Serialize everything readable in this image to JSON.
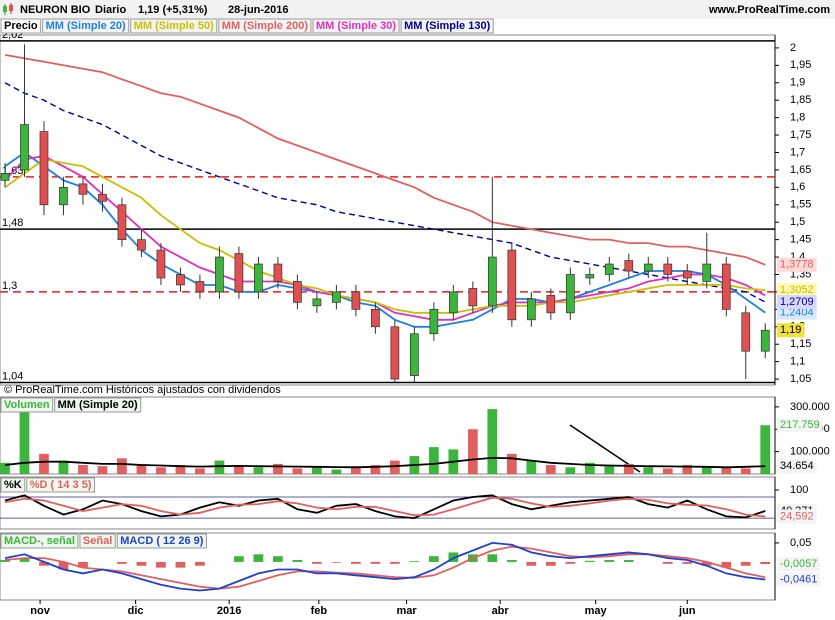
{
  "header": {
    "symbol": "NEURON BIO",
    "period": "Diario",
    "quote": "1,19 (+5,31%)",
    "date": "28-jun-2016",
    "site": "www.ProRealTime.com"
  },
  "footer_note": "© ProRealTime.com Históricos ajustados con dividendos",
  "chart_data": [
    {
      "type": "candlestick",
      "name": "Precio",
      "up_color": "#3cb53c",
      "down_color": "#e05050",
      "x": [
        0,
        1,
        2,
        3,
        4,
        5,
        6,
        7,
        8,
        9,
        10,
        11,
        12,
        13,
        14,
        15,
        16,
        17,
        18,
        19,
        20,
        21,
        22,
        23,
        24,
        25,
        26,
        27,
        28,
        29,
        30,
        31,
        32,
        33,
        34,
        35,
        36,
        37,
        38,
        39
      ],
      "xlim": [
        -0.256,
        39.5
      ],
      "open": [
        1.62,
        1.65,
        1.76,
        1.55,
        1.61,
        1.58,
        1.55,
        1.45,
        1.42,
        1.35,
        1.33,
        1.3,
        1.41,
        1.3,
        1.38,
        1.33,
        1.26,
        1.27,
        1.3,
        1.25,
        1.2,
        1.06,
        1.18,
        1.24,
        1.31,
        1.26,
        1.42,
        1.22,
        1.29,
        1.24,
        1.34,
        1.35,
        1.39,
        1.36,
        1.38,
        1.36,
        1.33,
        1.38,
        1.24,
        1.13
      ],
      "high": [
        1.67,
        2.01,
        1.79,
        1.63,
        1.63,
        1.61,
        1.57,
        1.48,
        1.44,
        1.37,
        1.35,
        1.43,
        1.43,
        1.4,
        1.4,
        1.35,
        1.3,
        1.32,
        1.32,
        1.27,
        1.22,
        1.2,
        1.27,
        1.32,
        1.33,
        1.63,
        1.44,
        1.3,
        1.31,
        1.37,
        1.37,
        1.4,
        1.41,
        1.4,
        1.4,
        1.38,
        1.47,
        1.4,
        1.26,
        1.21
      ],
      "low": [
        1.6,
        1.63,
        1.52,
        1.52,
        1.55,
        1.53,
        1.43,
        1.4,
        1.32,
        1.3,
        1.28,
        1.28,
        1.28,
        1.28,
        1.31,
        1.25,
        1.24,
        1.25,
        1.23,
        1.18,
        1.04,
        1.04,
        1.16,
        1.22,
        1.24,
        1.24,
        1.2,
        1.2,
        1.22,
        1.22,
        1.32,
        1.33,
        1.34,
        1.34,
        1.33,
        1.32,
        1.31,
        1.23,
        1.05,
        1.11
      ],
      "close": [
        1.64,
        1.78,
        1.55,
        1.6,
        1.58,
        1.56,
        1.45,
        1.42,
        1.34,
        1.32,
        1.3,
        1.4,
        1.3,
        1.38,
        1.33,
        1.27,
        1.28,
        1.3,
        1.25,
        1.2,
        1.05,
        1.18,
        1.25,
        1.3,
        1.26,
        1.4,
        1.22,
        1.28,
        1.24,
        1.35,
        1.35,
        1.38,
        1.36,
        1.38,
        1.35,
        1.34,
        1.38,
        1.25,
        1.13,
        1.19
      ],
      "close_label": "1,19",
      "close_label_color": "#f0e040",
      "series": [
        {
          "name": "MM (Simple 20)",
          "color": "#1e7fe0",
          "values": [
            1.66,
            1.7,
            1.66,
            1.62,
            1.6,
            1.55,
            1.48,
            1.42,
            1.38,
            1.35,
            1.32,
            1.32,
            1.3,
            1.3,
            1.32,
            1.31,
            1.3,
            1.29,
            1.27,
            1.26,
            1.22,
            1.2,
            1.2,
            1.21,
            1.22,
            1.25,
            1.28,
            1.28,
            1.27,
            1.28,
            1.3,
            1.32,
            1.34,
            1.36,
            1.36,
            1.36,
            1.35,
            1.32,
            1.28,
            1.2404
          ],
          "last_label": "1,2404"
        },
        {
          "name": "MM (Simple 50)",
          "color": "#c8c000",
          "values": [
            1.6,
            1.64,
            1.68,
            1.67,
            1.66,
            1.63,
            1.6,
            1.57,
            1.52,
            1.48,
            1.44,
            1.42,
            1.39,
            1.36,
            1.34,
            1.32,
            1.31,
            1.29,
            1.28,
            1.27,
            1.25,
            1.24,
            1.24,
            1.24,
            1.25,
            1.26,
            1.26,
            1.26,
            1.27,
            1.27,
            1.28,
            1.29,
            1.3,
            1.31,
            1.32,
            1.32,
            1.32,
            1.32,
            1.31,
            1.3052
          ],
          "last_label": "1,3052"
        },
        {
          "name": "MM (Simple 200)",
          "color": "#e06060",
          "values": [
            1.98,
            1.97,
            1.96,
            1.95,
            1.94,
            1.93,
            1.91,
            1.89,
            1.87,
            1.86,
            1.84,
            1.82,
            1.8,
            1.77,
            1.74,
            1.72,
            1.7,
            1.68,
            1.66,
            1.64,
            1.62,
            1.6,
            1.57,
            1.55,
            1.53,
            1.5,
            1.49,
            1.48,
            1.47,
            1.46,
            1.45,
            1.45,
            1.44,
            1.44,
            1.43,
            1.43,
            1.42,
            1.41,
            1.4,
            1.3778
          ],
          "last_label": "1,3778"
        },
        {
          "name": "MM (Simple 30)",
          "color": "#e030c0",
          "values": [
            1.62,
            1.68,
            1.69,
            1.66,
            1.63,
            1.58,
            1.53,
            1.48,
            1.43,
            1.4,
            1.37,
            1.35,
            1.33,
            1.33,
            1.33,
            1.32,
            1.3,
            1.29,
            1.28,
            1.27,
            1.24,
            1.23,
            1.22,
            1.22,
            1.24,
            1.26,
            1.27,
            1.27,
            1.27,
            1.28,
            1.29,
            1.3,
            1.31,
            1.33,
            1.34,
            1.35,
            1.35,
            1.34,
            1.32,
            1.29
          ]
        },
        {
          "name": "MM (Simple 130)",
          "color": "#000090",
          "dashed": true,
          "values": [
            1.9,
            1.87,
            1.85,
            1.82,
            1.8,
            1.78,
            1.75,
            1.72,
            1.69,
            1.67,
            1.65,
            1.63,
            1.61,
            1.59,
            1.57,
            1.56,
            1.55,
            1.53,
            1.52,
            1.51,
            1.5,
            1.49,
            1.48,
            1.47,
            1.46,
            1.45,
            1.44,
            1.42,
            1.4,
            1.39,
            1.38,
            1.37,
            1.36,
            1.35,
            1.34,
            1.33,
            1.32,
            1.31,
            1.3,
            1.2709
          ],
          "last_label": "1,2709"
        }
      ],
      "levels": [
        {
          "value": 2.02,
          "label": "2,02",
          "color": "#000000"
        },
        {
          "value": 1.63,
          "label": "1,63",
          "color": "#e02020",
          "dashed": true
        },
        {
          "value": 1.48,
          "label": "1,48",
          "color": "#000000"
        },
        {
          "value": 1.3,
          "label": "1,3",
          "color": "#e02020",
          "dashed": true
        },
        {
          "value": 1.04,
          "label": "1,04",
          "color": "#000000"
        }
      ],
      "ylim": [
        1.033,
        2.037
      ],
      "yticks": [
        2,
        {
          "value": 1.95,
          "label": "1,95"
        },
        {
          "value": 1.9,
          "label": "1,9"
        },
        {
          "value": 1.85,
          "label": "1,85"
        },
        {
          "value": 1.8,
          "label": "1,8"
        },
        {
          "value": 1.75,
          "label": "1,75"
        },
        {
          "value": 1.7,
          "label": "1,7"
        },
        {
          "value": 1.65,
          "label": "1,65"
        },
        {
          "value": 1.6,
          "label": "1,6"
        },
        {
          "value": 1.55,
          "label": "1,55"
        },
        {
          "value": 1.5,
          "label": "1,5"
        },
        {
          "value": 1.45,
          "label": "1,45"
        },
        {
          "value": 1.4,
          "label": "1,4"
        },
        {
          "value": 1.35,
          "label": "1,35"
        },
        {
          "value": 1.3,
          "label": "1,3"
        },
        {
          "value": 1.25,
          "label": "1,25"
        },
        {
          "value": 1.2,
          "label": "1,2"
        },
        {
          "value": 1.15,
          "label": "1,15"
        },
        {
          "value": 1.1,
          "label": "1,1"
        },
        {
          "value": 1.05,
          "label": "1,05"
        }
      ]
    },
    {
      "type": "bar",
      "xlim": [
        -0.256,
        39.5
      ],
      "ylim": [
        0,
        344000
      ],
      "yticks": [
        {
          "value": 300000,
          "label": "300.000"
        },
        {
          "value": 200000,
          "label": "200.000"
        },
        {
          "value": 100000,
          "label": "100.000"
        }
      ],
      "series": [
        {
          "name": "Volumen",
          "color": "#3cb53c",
          "down_color": "#e06060",
          "values": [
            50000,
            300000,
            90000,
            60000,
            40000,
            35000,
            70000,
            45000,
            30000,
            40000,
            25000,
            60000,
            35000,
            30000,
            45000,
            25000,
            30000,
            20000,
            35000,
            40000,
            60000,
            80000,
            120000,
            110000,
            200000,
            290000,
            90000,
            60000,
            40000,
            30000,
            50000,
            35000,
            45000,
            30000,
            25000,
            40000,
            35000,
            30000,
            25000,
            217759
          ],
          "last_label": "217.759"
        },
        {
          "name": "MM (Simple 20)",
          "color": "#000000",
          "type": "line",
          "values": [
            40000,
            50000,
            55000,
            55000,
            50000,
            45000,
            45000,
            40000,
            38000,
            35000,
            33000,
            35000,
            36000,
            35000,
            34000,
            33000,
            32000,
            31000,
            30000,
            32000,
            35000,
            40000,
            45000,
            55000,
            65000,
            72000,
            70000,
            60000,
            50000,
            45000,
            40000,
            38000,
            36000,
            35000,
            34000,
            33000,
            32000,
            30000,
            32000,
            34654
          ],
          "last_label": "34.654"
        }
      ]
    },
    {
      "type": "line",
      "xlim": [
        -0.256,
        39.5
      ],
      "ylim": [
        -11,
        137
      ],
      "yticks": [
        100
      ],
      "hlines": [
        80,
        20
      ],
      "series": [
        {
          "name": "%K",
          "color": "#000000",
          "values": [
            70,
            85,
            55,
            30,
            45,
            70,
            60,
            40,
            25,
            30,
            50,
            65,
            55,
            70,
            75,
            45,
            35,
            55,
            60,
            40,
            25,
            20,
            45,
            70,
            80,
            85,
            60,
            45,
            55,
            65,
            70,
            75,
            80,
            60,
            50,
            70,
            45,
            25,
            22,
            40.371
          ],
          "last_label": "40,371"
        },
        {
          "name": "%D ( 14 3 5)",
          "color": "#e06060",
          "values": [
            65,
            75,
            70,
            55,
            40,
            50,
            60,
            55,
            40,
            30,
            35,
            50,
            58,
            60,
            68,
            62,
            50,
            45,
            52,
            52,
            40,
            28,
            30,
            45,
            62,
            78,
            75,
            62,
            52,
            55,
            62,
            70,
            75,
            72,
            62,
            58,
            56,
            45,
            30,
            24.592
          ],
          "last_label": "24,592"
        }
      ]
    },
    {
      "type": "line",
      "xlim": [
        -0.256,
        39.5
      ],
      "ylim": [
        -0.1,
        0.076
      ],
      "yticks": [
        {
          "value": 0.05,
          "label": "0,05"
        }
      ],
      "xticks": [
        {
          "value": 1.8,
          "label": "nov"
        },
        {
          "value": 6.7,
          "label": "dic"
        },
        {
          "value": 11.5,
          "label": "2016"
        },
        {
          "value": 16.1,
          "label": "feb"
        },
        {
          "value": 20.6,
          "label": "mar"
        },
        {
          "value": 25.4,
          "label": "abr"
        },
        {
          "value": 30.3,
          "label": "may"
        },
        {
          "value": 35.0,
          "label": "jun"
        }
      ],
      "series": [
        {
          "name": "MACD-, señal",
          "type": "bar",
          "color": "#3cb53c",
          "down_color": "#e06060",
          "values": [
            0.005,
            0.01,
            -0.01,
            -0.02,
            -0.015,
            0,
            -0.005,
            -0.01,
            -0.015,
            -0.015,
            -0.01,
            0,
            0.015,
            0.02,
            0.015,
            0.005,
            -0.005,
            -0.002,
            -0.005,
            -0.005,
            -0.005,
            0.002,
            0.015,
            0.025,
            0.02,
            0.02,
            0.005,
            -0.01,
            -0.01,
            -0.005,
            0.003,
            0.005,
            0.005,
            0,
            -0.005,
            -0.005,
            -0.01,
            -0.015,
            -0.01,
            -0.0057
          ],
          "last_label": "-0,0057"
        },
        {
          "name": "Señal",
          "color": "#e06060",
          "values": [
            0.005,
            0.01,
            0.01,
            0.0,
            -0.015,
            -0.02,
            -0.025,
            -0.035,
            -0.045,
            -0.055,
            -0.065,
            -0.07,
            -0.065,
            -0.05,
            -0.035,
            -0.025,
            -0.025,
            -0.028,
            -0.03,
            -0.035,
            -0.04,
            -0.042,
            -0.035,
            -0.015,
            0.01,
            0.03,
            0.04,
            0.035,
            0.025,
            0.015,
            0.012,
            0.015,
            0.02,
            0.02,
            0.015,
            0.01,
            0.0,
            -0.015,
            -0.03,
            -0.0404
          ]
        },
        {
          "name": "MACD ( 12 26 9)",
          "color": "#2040d0",
          "values": [
            0.01,
            0.02,
            0.0,
            -0.02,
            -0.03,
            -0.02,
            -0.03,
            -0.045,
            -0.06,
            -0.07,
            -0.075,
            -0.07,
            -0.05,
            -0.03,
            -0.02,
            -0.02,
            -0.03,
            -0.03,
            -0.035,
            -0.04,
            -0.045,
            -0.04,
            -0.02,
            0.01,
            0.03,
            0.05,
            0.045,
            0.025,
            0.015,
            0.01,
            0.015,
            0.02,
            0.025,
            0.02,
            0.01,
            0.005,
            -0.01,
            -0.03,
            -0.04,
            -0.0461
          ],
          "last_label": "-0,0461"
        }
      ]
    }
  ]
}
